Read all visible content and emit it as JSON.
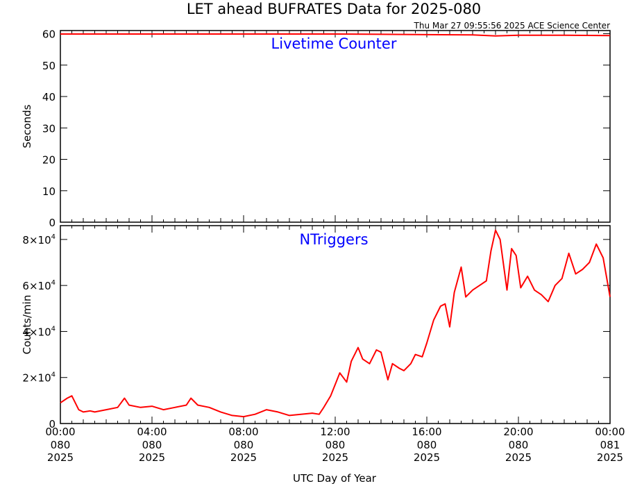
{
  "title": "LET ahead BUFRATES Data for 2025-080",
  "timestamp": "Thu Mar 27 09:55:56 2025 ACE Science Center",
  "xlabel": "UTC Day of Year",
  "colors": {
    "series": "#ff0000",
    "panel_title": "#0000ff",
    "axes": "#000000"
  },
  "chart_data": [
    {
      "type": "line",
      "panel": "top",
      "title": "Livetime Counter",
      "ylabel": "Seconds",
      "ylim": [
        0,
        61
      ],
      "yticks": [
        {
          "value": 0,
          "label": "0"
        },
        {
          "value": 10,
          "label": "10"
        },
        {
          "value": 20,
          "label": "20"
        },
        {
          "value": 30,
          "label": "30"
        },
        {
          "value": 40,
          "label": "40"
        },
        {
          "value": 50,
          "label": "50"
        },
        {
          "value": 60,
          "label": "60"
        }
      ],
      "series": [
        {
          "x_hours": [
            0,
            2,
            4,
            6,
            8,
            10,
            12,
            14,
            16,
            18,
            19,
            20,
            22,
            24
          ],
          "values": [
            59.9,
            59.9,
            59.9,
            59.9,
            59.9,
            59.9,
            59.9,
            59.8,
            59.7,
            59.6,
            59.3,
            59.5,
            59.5,
            59.4
          ]
        }
      ]
    },
    {
      "type": "line",
      "panel": "bottom",
      "title": "NTriggers",
      "ylabel": "Counts/min",
      "ylim": [
        0,
        86000
      ],
      "yticks": [
        {
          "value": 0,
          "base": "0",
          "exp": ""
        },
        {
          "value": 20000,
          "base": "2×10",
          "exp": "4"
        },
        {
          "value": 40000,
          "base": "4×10",
          "exp": "4"
        },
        {
          "value": 60000,
          "base": "6×10",
          "exp": "4"
        },
        {
          "value": 80000,
          "base": "8×10",
          "exp": "4"
        }
      ],
      "series": [
        {
          "x_hours": [
            0,
            0.3,
            0.5,
            0.8,
            1.0,
            1.3,
            1.5,
            2.0,
            2.5,
            2.8,
            3.0,
            3.5,
            4.0,
            4.5,
            5.0,
            5.5,
            5.7,
            6.0,
            6.5,
            7.0,
            7.5,
            8.0,
            8.5,
            9.0,
            9.5,
            10.0,
            10.5,
            11.0,
            11.3,
            11.5,
            11.8,
            12.0,
            12.2,
            12.5,
            12.7,
            13.0,
            13.2,
            13.5,
            13.8,
            14.0,
            14.3,
            14.5,
            14.8,
            15.0,
            15.3,
            15.5,
            15.8,
            16.0,
            16.3,
            16.6,
            16.8,
            17.0,
            17.2,
            17.5,
            17.7,
            18.0,
            18.3,
            18.6,
            18.8,
            19.0,
            19.2,
            19.5,
            19.7,
            19.9,
            20.1,
            20.4,
            20.7,
            21.0,
            21.3,
            21.6,
            21.9,
            22.2,
            22.5,
            22.8,
            23.1,
            23.4,
            23.7,
            24.0
          ],
          "values": [
            9000,
            11000,
            12000,
            6000,
            5000,
            5500,
            5000,
            6000,
            7000,
            11000,
            8000,
            7000,
            7500,
            6000,
            7000,
            8000,
            11000,
            8000,
            7000,
            5000,
            3500,
            3000,
            4000,
            6000,
            5000,
            3500,
            4000,
            4500,
            4000,
            7000,
            12000,
            17000,
            22000,
            18000,
            27000,
            33000,
            28000,
            26000,
            32000,
            31000,
            19000,
            26000,
            24000,
            23000,
            26000,
            30000,
            29000,
            35000,
            45000,
            51000,
            52000,
            42000,
            57000,
            68000,
            55000,
            58000,
            60000,
            62000,
            75000,
            84000,
            80000,
            58000,
            76000,
            73000,
            59000,
            64000,
            58000,
            56000,
            53000,
            60000,
            63000,
            74000,
            65000,
            67000,
            70000,
            78000,
            72000,
            55000
          ]
        }
      ]
    }
  ],
  "xticks": [
    {
      "hours": 0,
      "time": "00:00",
      "day": "080",
      "year": "2025"
    },
    {
      "hours": 4,
      "time": "04:00",
      "day": "080",
      "year": "2025"
    },
    {
      "hours": 8,
      "time": "08:00",
      "day": "080",
      "year": "2025"
    },
    {
      "hours": 12,
      "time": "12:00",
      "day": "080",
      "year": "2025"
    },
    {
      "hours": 16,
      "time": "16:00",
      "day": "080",
      "year": "2025"
    },
    {
      "hours": 20,
      "time": "20:00",
      "day": "080",
      "year": "2025"
    },
    {
      "hours": 24,
      "time": "00:00",
      "day": "081",
      "year": "2025"
    }
  ]
}
